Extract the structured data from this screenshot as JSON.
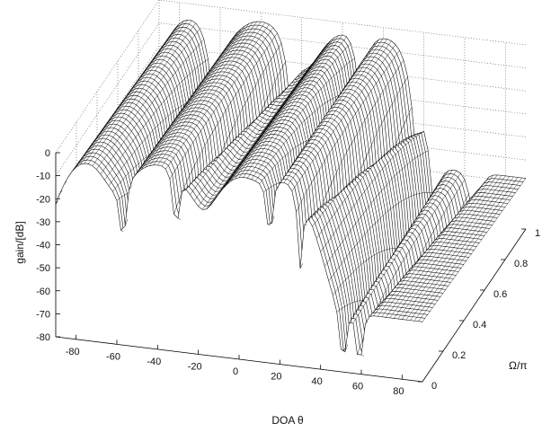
{
  "chart_data": {
    "type": "surface",
    "zlabel": "gain/[dB]",
    "xlabel": "DOA θ",
    "ylabel": "Ω/π",
    "z_ticks": [
      "0",
      "-10",
      "-20",
      "-30",
      "-40",
      "-50",
      "-60",
      "-70",
      "-80"
    ],
    "x_ticks": [
      "-80",
      "-60",
      "-40",
      "-20",
      "0",
      "20",
      "40",
      "60",
      "80"
    ],
    "y_ticks": [
      "0",
      "0.2",
      "0.4",
      "0.6",
      "0.8",
      "1"
    ],
    "zlim": [
      -80,
      0
    ],
    "xlim": [
      -90,
      90
    ],
    "ylim": [
      0,
      1
    ],
    "grid": true,
    "mesh_color": "#000000",
    "surface_fill": "#ffffff",
    "contour_projection": true,
    "description_series": {
      "name": "",
      "passband_angles_deg": [
        -40,
        0,
        20
      ],
      "null_angles_deg": [
        -60,
        -30,
        10,
        30,
        50
      ]
    }
  }
}
